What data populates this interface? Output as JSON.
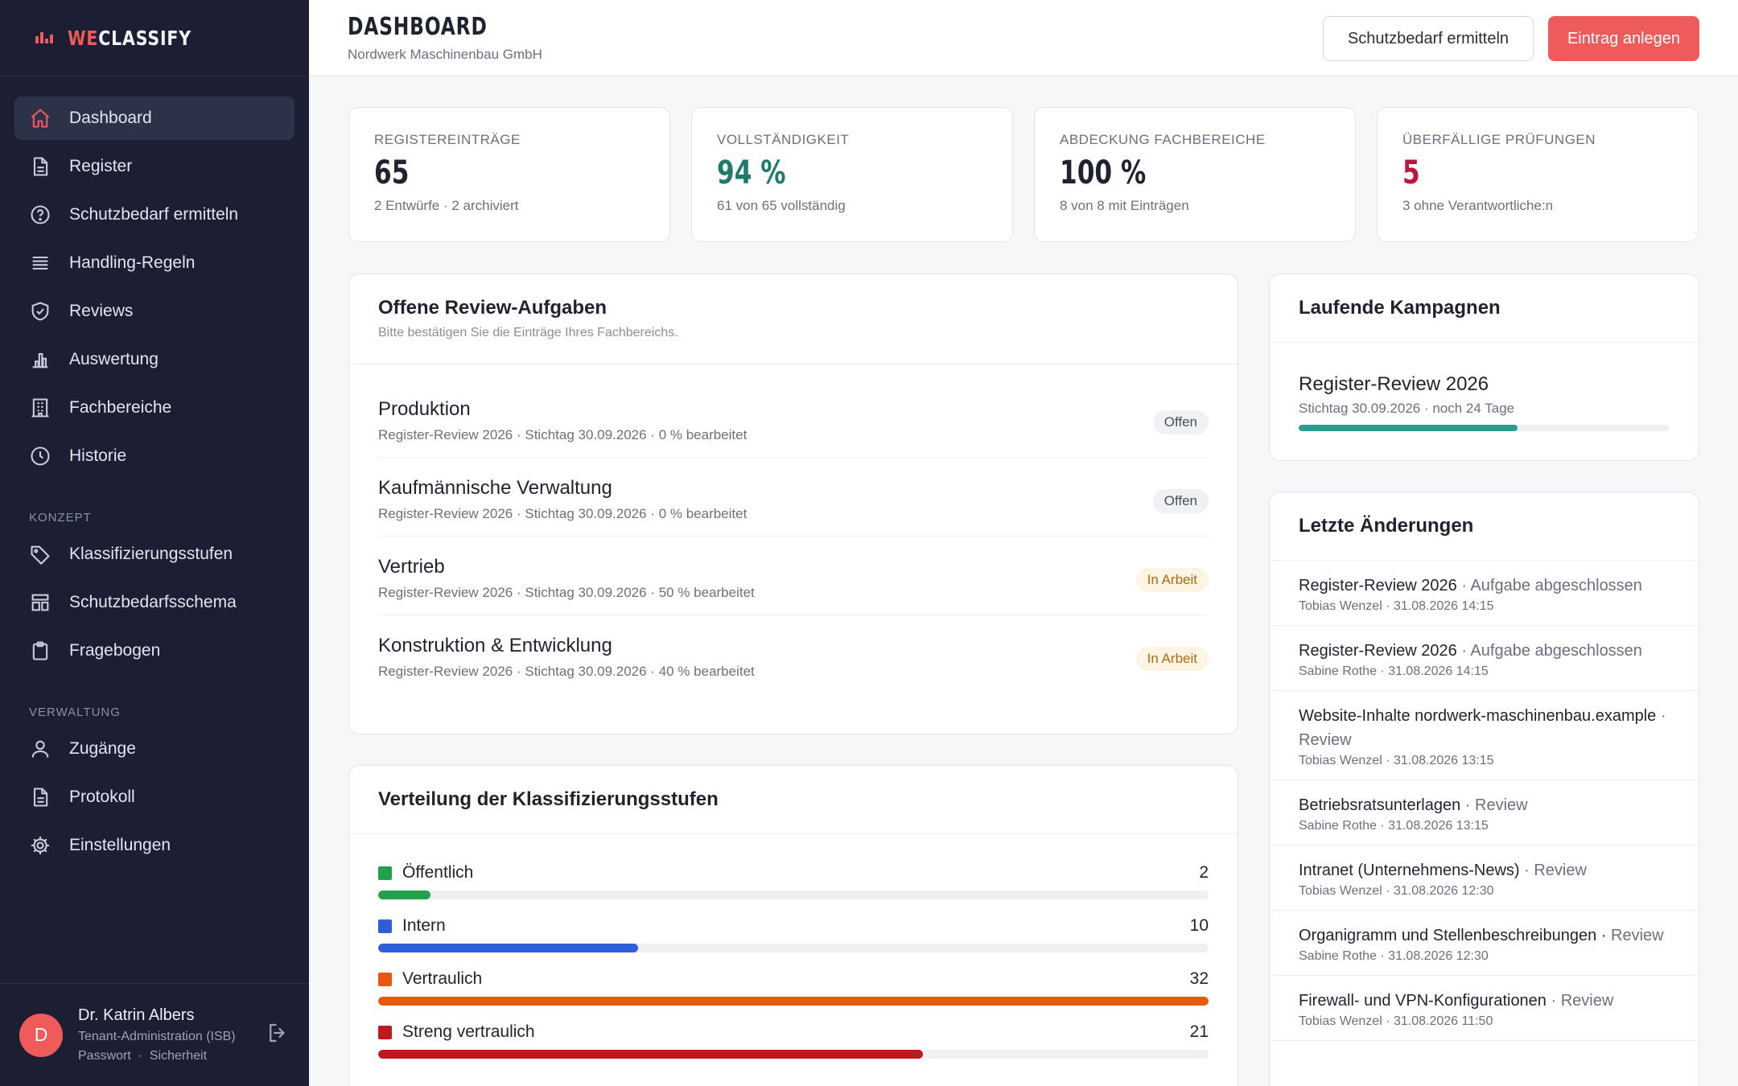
{
  "brand": {
    "prefix": "WE",
    "suffix": "CLASSIFY"
  },
  "colors": {
    "accent": "#ef5a5a",
    "sidebar": "#1c1f33",
    "teal": "#1f7a6c",
    "danger": "#c0143c"
  },
  "nav": {
    "main": [
      {
        "label": "Dashboard",
        "icon": "home-icon"
      },
      {
        "label": "Register",
        "icon": "document-icon"
      },
      {
        "label": "Schutzbedarf ermitteln",
        "icon": "help-circle-icon"
      },
      {
        "label": "Handling-Regeln",
        "icon": "list-icon"
      },
      {
        "label": "Reviews",
        "icon": "shield-check-icon"
      },
      {
        "label": "Auswertung",
        "icon": "bar-chart-icon"
      },
      {
        "label": "Fachbereiche",
        "icon": "building-icon"
      },
      {
        "label": "Historie",
        "icon": "clock-icon"
      }
    ],
    "section_konzept": "KONZEPT",
    "konzept": [
      {
        "label": "Klassifizierungsstufen",
        "icon": "tag-icon"
      },
      {
        "label": "Schutzbedarfsschema",
        "icon": "layout-icon"
      },
      {
        "label": "Fragebogen",
        "icon": "clipboard-icon"
      }
    ],
    "section_verwaltung": "VERWALTUNG",
    "verwaltung": [
      {
        "label": "Zugänge",
        "icon": "user-icon"
      },
      {
        "label": "Protokoll",
        "icon": "document-icon"
      },
      {
        "label": "Einstellungen",
        "icon": "gear-icon"
      }
    ]
  },
  "user": {
    "initial": "D",
    "name": "Dr. Katrin Albers",
    "role": "Tenant-Administration (ISB)",
    "link_password": "Passwort",
    "separator": "·",
    "link_security": "Sicherheit"
  },
  "header": {
    "title": "DASHBOARD",
    "subtitle": "Nordwerk Maschinenbau GmbH",
    "btn_secondary": "Schutzbedarf ermitteln",
    "btn_primary": "Eintrag anlegen"
  },
  "stats": [
    {
      "label": "REGISTEREINTRÄGE",
      "value": "65",
      "sub": "2 Entwürfe · 2 archiviert",
      "color": "#1f2330"
    },
    {
      "label": "VOLLSTÄNDIGKEIT",
      "value": "94 %",
      "sub": "61 von 65 vollständig",
      "color": "#1f7a6c"
    },
    {
      "label": "ABDECKUNG FACHBEREICHE",
      "value": "100 %",
      "sub": "8 von 8 mit Einträgen",
      "color": "#1f2330"
    },
    {
      "label": "ÜBERFÄLLIGE PRÜFUNGEN",
      "value": "5",
      "sub": "3 ohne Verantwortliche:n",
      "color": "#c0143c"
    }
  ],
  "reviews": {
    "title": "Offene Review-Aufgaben",
    "desc": "Bitte bestätigen Sie die Einträge Ihres Fachbereichs.",
    "tasks": [
      {
        "name": "Produktion",
        "meta": "Register-Review 2026 · Stichtag 30.09.2026 · 0 % bearbeitet",
        "status": "Offen",
        "kind": "offen"
      },
      {
        "name": "Kaufmännische Verwaltung",
        "meta": "Register-Review 2026 · Stichtag 30.09.2026 · 0 % bearbeitet",
        "status": "Offen",
        "kind": "offen"
      },
      {
        "name": "Vertrieb",
        "meta": "Register-Review 2026 · Stichtag 30.09.2026 · 50 % bearbeitet",
        "status": "In Arbeit",
        "kind": "arbeit"
      },
      {
        "name": "Konstruktion & Entwicklung",
        "meta": "Register-Review 2026 · Stichtag 30.09.2026 · 40 % bearbeitet",
        "status": "In Arbeit",
        "kind": "arbeit"
      }
    ]
  },
  "distribution": {
    "title": "Verteilung der Klassifizierungsstufen",
    "max": 32,
    "levels": [
      {
        "label": "Öffentlich",
        "count": 2,
        "color": "#22a04b"
      },
      {
        "label": "Intern",
        "count": 10,
        "color": "#2f5fd7"
      },
      {
        "label": "Vertraulich",
        "count": 32,
        "color": "#e8590c"
      },
      {
        "label": "Streng vertraulich",
        "count": 21,
        "color": "#c0181f"
      }
    ]
  },
  "campaigns": {
    "title": "Laufende Kampagnen",
    "items": [
      {
        "name": "Register-Review 2026",
        "meta": "Stichtag 30.09.2026 · noch 24 Tage",
        "progress": 0.59
      }
    ]
  },
  "changes": {
    "title": "Letzte Änderungen",
    "items": [
      {
        "title": "Register-Review 2026",
        "action": " · Aufgabe abgeschlossen",
        "meta": "Tobias Wenzel · 31.08.2026 14:15"
      },
      {
        "title": "Register-Review 2026",
        "action": " · Aufgabe abgeschlossen",
        "meta": "Sabine Rothe · 31.08.2026 14:15"
      },
      {
        "title": "Website-Inhalte nordwerk-maschinenbau.example",
        "action": " · Review",
        "meta": "Tobias Wenzel · 31.08.2026 13:15"
      },
      {
        "title": "Betriebsratsunterlagen",
        "action": " · Review",
        "meta": "Sabine Rothe · 31.08.2026 13:15"
      },
      {
        "title": "Intranet (Unternehmens-News)",
        "action": " · Review",
        "meta": "Tobias Wenzel · 31.08.2026 12:30"
      },
      {
        "title": "Organigramm und Stellenbeschreibungen ·",
        "action": " Review",
        "meta": "Sabine Rothe · 31.08.2026 12:30"
      },
      {
        "title": "Firewall- und VPN-Konfigurationen",
        "action": " · Review",
        "meta": "Tobias Wenzel · 31.08.2026 11:50"
      }
    ]
  }
}
